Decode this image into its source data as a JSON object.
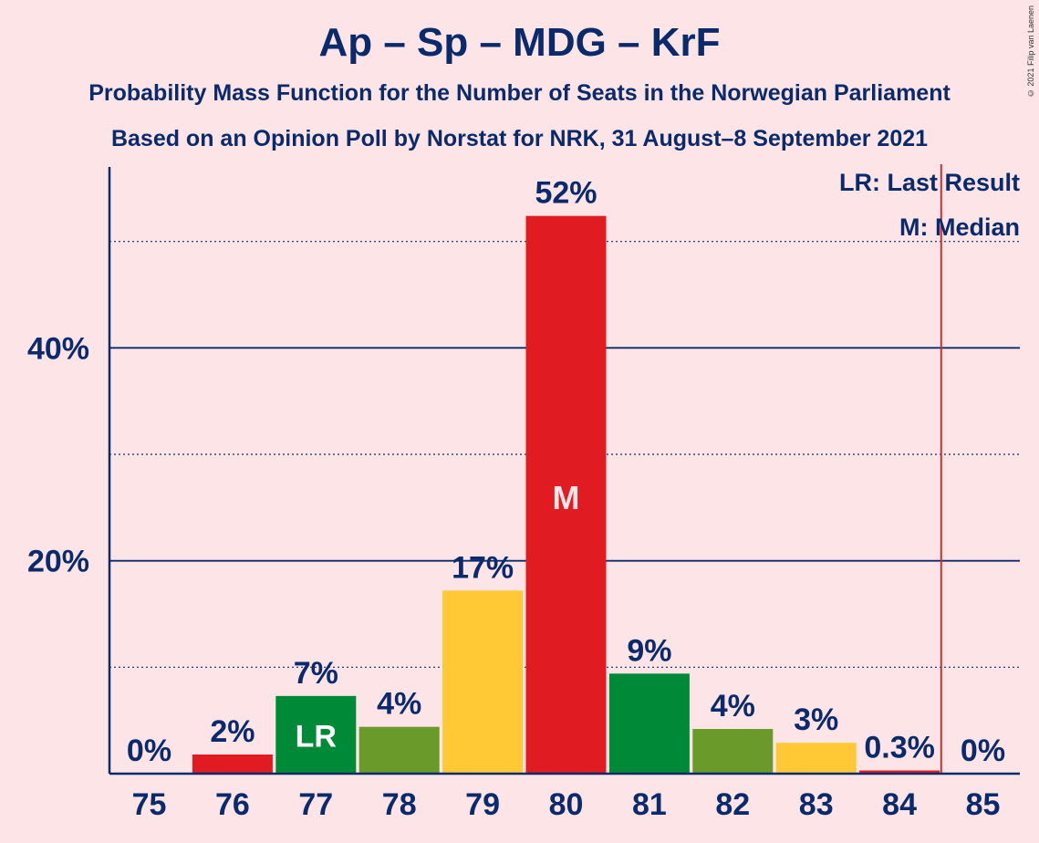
{
  "chart_data": {
    "type": "bar",
    "title": "Ap – Sp – MDG – KrF",
    "subtitle_1": "Probability Mass Function for the Number of Seats in the Norwegian Parliament",
    "subtitle_2": "Based on an Opinion Poll by Norstat for NRK, 31 August–8 September 2021",
    "copyright": "© 2021 Filip van Laenen",
    "categories": [
      "75",
      "76",
      "77",
      "78",
      "79",
      "80",
      "81",
      "82",
      "83",
      "84",
      "85"
    ],
    "values": [
      0,
      1.8,
      7.3,
      4.4,
      17.2,
      52.4,
      9.4,
      4.2,
      2.9,
      0.3,
      0
    ],
    "labels": [
      "0%",
      "2%",
      "7%",
      "4%",
      "17%",
      "52%",
      "9%",
      "4%",
      "3%",
      "0.3%",
      "0%"
    ],
    "colors": [
      "#e01b22",
      "#e01b22",
      "#008a38",
      "#6a9a2a",
      "#ffc935",
      "#e01b22",
      "#008a38",
      "#6a9a2a",
      "#ffc935",
      "#e01b22",
      "#e01b22"
    ],
    "ylim": [
      0,
      57
    ],
    "yticks": [
      {
        "value": 20,
        "label": "20%"
      },
      {
        "value": 40,
        "label": "40%"
      }
    ],
    "minor_gridlines": [
      10,
      30,
      50
    ],
    "last_result": {
      "category": "77",
      "marker": "LR"
    },
    "median": {
      "category": "80",
      "marker": "M"
    },
    "majority_line_after": "84",
    "legend": {
      "lr": "LR: Last Result",
      "m": "M: Median",
      "position": "top-right"
    },
    "axis_color": "#0a2a6b",
    "majority_line_color": "#e01b22"
  }
}
